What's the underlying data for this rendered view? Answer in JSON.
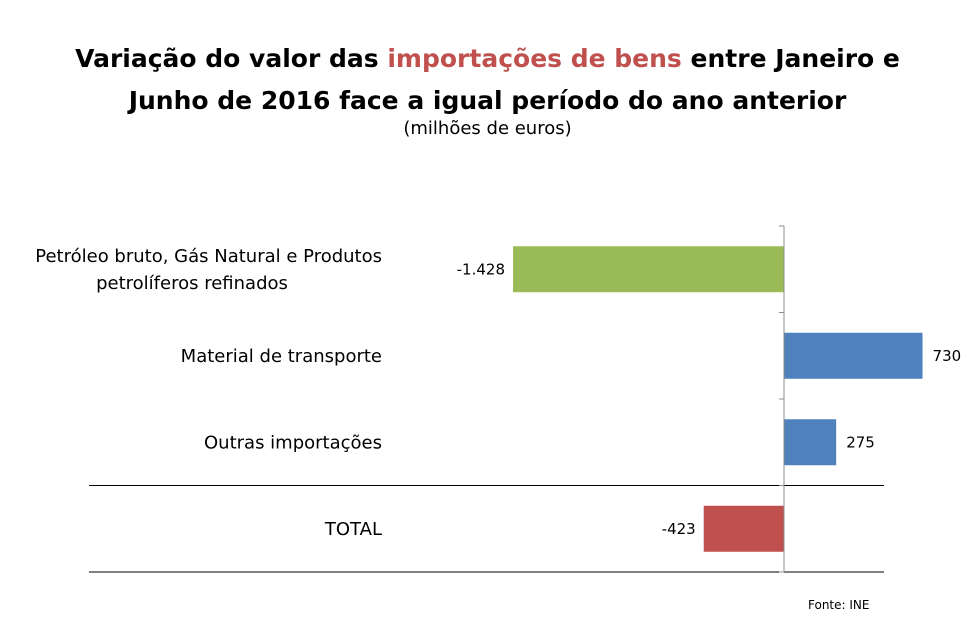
{
  "title": {
    "part1": "Variação do valor das ",
    "highlight": "importações de bens",
    "part2": " entre Janeiro e",
    "line2": "Junho de 2016 face a igual período do ano anterior"
  },
  "subtitle": "(milhões de euros)",
  "source": "Fonte: INE",
  "colors": {
    "highlight": "#c0504d"
  },
  "chart_data": {
    "type": "bar",
    "orientation": "horizontal",
    "categories": [
      [
        "Petróleo bruto, Gás Natural e Produtos",
        "petrolíferos refinados"
      ],
      [
        "Material de transporte"
      ],
      [
        "Outras importações"
      ],
      [
        "TOTAL"
      ]
    ],
    "values": [
      -1428,
      730,
      275,
      -423
    ],
    "value_labels": [
      "-1.428",
      "730",
      "275",
      "-423"
    ],
    "bar_colors": [
      "#9bbb59",
      "#4f81bd",
      "#4f81bd",
      "#c0504d"
    ],
    "xlim": [
      -2000,
      730
    ],
    "grid": false,
    "legend": "none"
  }
}
